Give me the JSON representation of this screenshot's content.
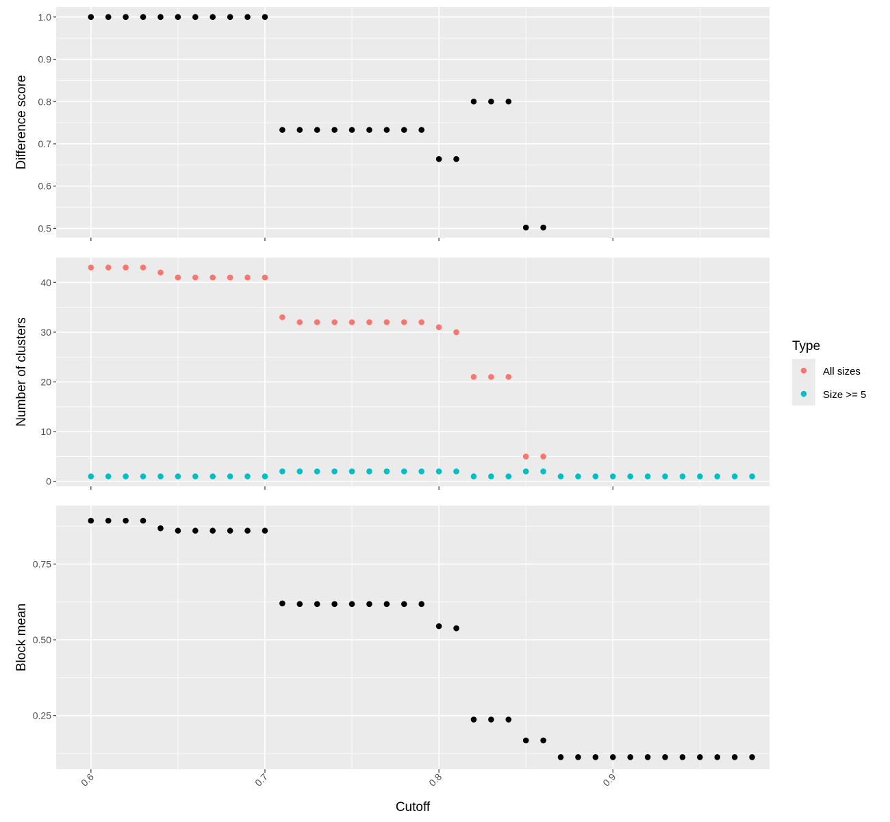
{
  "chart_data": {
    "type": "scatter",
    "xlabel": "Cutoff",
    "xlim": [
      0.58,
      0.99
    ],
    "x_ticks": [
      "0.6",
      "0.7",
      "0.8",
      "0.9"
    ],
    "x_tick_values": [
      0.6,
      0.7,
      0.8,
      0.9
    ],
    "grid": true,
    "legend": {
      "title": "Type",
      "placement": "right",
      "entries": [
        {
          "label": "All sizes",
          "color": "#F8766D"
        },
        {
          "label": "Size >= 5",
          "color": "#00BFC4"
        }
      ]
    },
    "panels": [
      {
        "ylabel": "Difference score",
        "ylim": [
          0.478,
          1.024
        ],
        "y_ticks": [
          "0.5",
          "0.6",
          "0.7",
          "0.8",
          "0.9",
          "1.0"
        ],
        "y_tick_values": [
          0.5,
          0.6,
          0.7,
          0.8,
          0.9,
          1.0
        ],
        "series": [
          {
            "color": "#000000",
            "x": [
              0.6,
              0.61,
              0.62,
              0.63,
              0.64,
              0.65,
              0.66,
              0.67,
              0.68,
              0.69,
              0.7,
              0.71,
              0.72,
              0.73,
              0.74,
              0.75,
              0.76,
              0.77,
              0.78,
              0.79,
              0.8,
              0.81,
              0.82,
              0.83,
              0.84,
              0.85,
              0.86
            ],
            "y": [
              1.0,
              1.0,
              1.0,
              1.0,
              1.0,
              1.0,
              1.0,
              1.0,
              1.0,
              1.0,
              1.0,
              0.733,
              0.733,
              0.733,
              0.733,
              0.733,
              0.733,
              0.733,
              0.733,
              0.733,
              0.664,
              0.664,
              0.8,
              0.8,
              0.8,
              0.502,
              0.502
            ]
          }
        ]
      },
      {
        "ylabel": "Number of clusters",
        "ylim": [
          -1.0,
          45.0
        ],
        "y_ticks": [
          "0",
          "10",
          "20",
          "30",
          "40"
        ],
        "y_tick_values": [
          0,
          10,
          20,
          30,
          40
        ],
        "series": [
          {
            "name": "All sizes",
            "color": "#F8766D",
            "x": [
              0.6,
              0.61,
              0.62,
              0.63,
              0.64,
              0.65,
              0.66,
              0.67,
              0.68,
              0.69,
              0.7,
              0.71,
              0.72,
              0.73,
              0.74,
              0.75,
              0.76,
              0.77,
              0.78,
              0.79,
              0.8,
              0.81,
              0.82,
              0.83,
              0.84,
              0.85,
              0.86
            ],
            "y": [
              43,
              43,
              43,
              43,
              42,
              41,
              41,
              41,
              41,
              41,
              41,
              33,
              32,
              32,
              32,
              32,
              32,
              32,
              32,
              32,
              31,
              30,
              21,
              21,
              21,
              5,
              5
            ]
          },
          {
            "name": "Size >= 5",
            "color": "#00BFC4",
            "x": [
              0.6,
              0.61,
              0.62,
              0.63,
              0.64,
              0.65,
              0.66,
              0.67,
              0.68,
              0.69,
              0.7,
              0.71,
              0.72,
              0.73,
              0.74,
              0.75,
              0.76,
              0.77,
              0.78,
              0.79,
              0.8,
              0.81,
              0.82,
              0.83,
              0.84,
              0.85,
              0.86,
              0.87,
              0.88,
              0.89,
              0.9,
              0.91,
              0.92,
              0.93,
              0.94,
              0.95,
              0.96,
              0.97,
              0.98
            ],
            "y": [
              1,
              1,
              1,
              1,
              1,
              1,
              1,
              1,
              1,
              1,
              1,
              2,
              2,
              2,
              2,
              2,
              2,
              2,
              2,
              2,
              2,
              2,
              1,
              1,
              1,
              2,
              2,
              1,
              1,
              1,
              1,
              1,
              1,
              1,
              1,
              1,
              1,
              1,
              1
            ]
          }
        ]
      },
      {
        "ylabel": "Block mean",
        "ylim": [
          0.073,
          0.943
        ],
        "y_ticks": [
          "0.25",
          "0.50",
          "0.75"
        ],
        "y_tick_values": [
          0.25,
          0.5,
          0.75
        ],
        "series": [
          {
            "color": "#000000",
            "x": [
              0.6,
              0.61,
              0.62,
              0.63,
              0.64,
              0.65,
              0.66,
              0.67,
              0.68,
              0.69,
              0.7,
              0.71,
              0.72,
              0.73,
              0.74,
              0.75,
              0.76,
              0.77,
              0.78,
              0.79,
              0.8,
              0.81,
              0.82,
              0.83,
              0.84,
              0.85,
              0.86,
              0.87,
              0.88,
              0.89,
              0.9,
              0.91,
              0.92,
              0.93,
              0.94,
              0.95,
              0.96,
              0.97,
              0.98
            ],
            "y": [
              0.893,
              0.893,
              0.893,
              0.893,
              0.868,
              0.86,
              0.86,
              0.86,
              0.86,
              0.86,
              0.86,
              0.62,
              0.618,
              0.618,
              0.618,
              0.618,
              0.618,
              0.618,
              0.618,
              0.618,
              0.545,
              0.538,
              0.237,
              0.237,
              0.237,
              0.168,
              0.168,
              0.113,
              0.113,
              0.113,
              0.113,
              0.113,
              0.113,
              0.113,
              0.113,
              0.113,
              0.113,
              0.113,
              0.113
            ]
          }
        ]
      }
    ]
  }
}
